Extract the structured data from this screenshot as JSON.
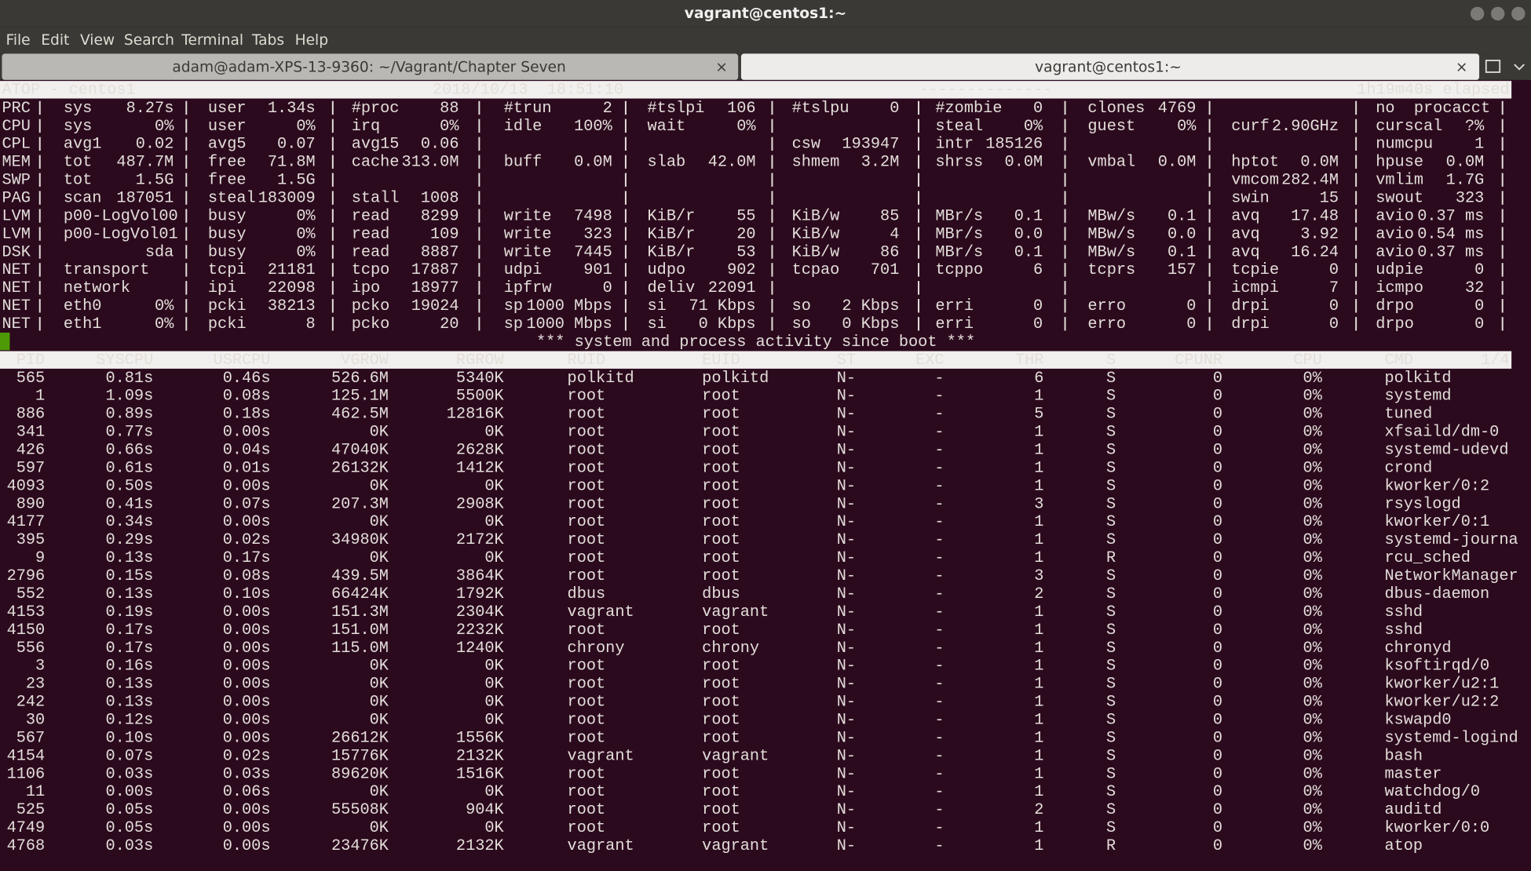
{
  "window": {
    "title": "vagrant@centos1:~"
  },
  "menu": [
    "File",
    "Edit",
    "View",
    "Search",
    "Terminal",
    "Tabs",
    "Help"
  ],
  "tabs": [
    "adam@adam-XPS-13-9360: ~/Vagrant/Chapter Seven",
    "vagrant@centos1:~"
  ],
  "atop": {
    "header": {
      "host": "ATOP - centos1",
      "datetime": "2018/10/13  18:51:10",
      "dashes": "--------------",
      "elapsed": "1h19m40s elapsed"
    },
    "system": [
      {
        "label": "PRC",
        "cells": [
          [
            "sys",
            "8.27s"
          ],
          [
            "user",
            "1.34s"
          ],
          [
            "#proc",
            "88"
          ],
          [
            "#trun",
            "2"
          ],
          [
            "#tslpi",
            "106"
          ],
          [
            "#tslpu",
            "0"
          ],
          [
            "#zombie",
            "0"
          ],
          [
            "clones",
            "4769"
          ],
          null,
          [
            "no  procacct",
            null
          ]
        ]
      },
      {
        "label": "CPU",
        "cells": [
          [
            "sys",
            "0%"
          ],
          [
            "user",
            "0%"
          ],
          [
            "irq",
            "0%"
          ],
          [
            "idle",
            "100%"
          ],
          [
            "wait",
            "0%"
          ],
          null,
          [
            "steal",
            "0%"
          ],
          [
            "guest",
            "0%"
          ],
          [
            "curf",
            "2.90GHz"
          ],
          [
            "curscal",
            "?%"
          ]
        ]
      },
      {
        "label": "CPL",
        "cells": [
          [
            "avg1",
            "0.02"
          ],
          [
            "avg5",
            "0.07"
          ],
          [
            "avg15",
            "0.06"
          ],
          null,
          null,
          [
            "csw",
            "193947"
          ],
          [
            "intr",
            "185126"
          ],
          null,
          null,
          [
            "numcpu",
            "1"
          ]
        ]
      },
      {
        "label": "MEM",
        "cells": [
          [
            "tot",
            "487.7M"
          ],
          [
            "free",
            "71.8M"
          ],
          [
            "cache",
            "313.0M"
          ],
          [
            "buff",
            "0.0M"
          ],
          [
            "slab",
            "42.0M"
          ],
          [
            "shmem",
            "3.2M"
          ],
          [
            "shrss",
            "0.0M"
          ],
          [
            "vmbal",
            "0.0M"
          ],
          [
            "hptot",
            "0.0M"
          ],
          [
            "hpuse",
            "0.0M"
          ]
        ]
      },
      {
        "label": "SWP",
        "cells": [
          [
            "tot",
            "1.5G"
          ],
          [
            "free",
            "1.5G"
          ],
          null,
          null,
          null,
          null,
          null,
          null,
          [
            "vmcom",
            "282.4M"
          ],
          [
            "vmlim",
            "1.7G"
          ]
        ]
      },
      {
        "label": "PAG",
        "cells": [
          [
            "scan",
            "187051"
          ],
          [
            "steal",
            "183009"
          ],
          [
            "stall",
            "1008"
          ],
          null,
          null,
          null,
          null,
          null,
          [
            "swin",
            "15"
          ],
          [
            "swout",
            "323"
          ]
        ]
      },
      {
        "label": "LVM",
        "cells": [
          [
            "p00-LogVol00",
            null
          ],
          [
            "busy",
            "0%"
          ],
          [
            "read",
            "8299"
          ],
          [
            "write",
            "7498"
          ],
          [
            "KiB/r",
            "55"
          ],
          [
            "KiB/w",
            "85"
          ],
          [
            "MBr/s",
            "0.1"
          ],
          [
            "MBw/s",
            "0.1"
          ],
          [
            "avq",
            "17.48"
          ],
          [
            "avio",
            "0.37 ms"
          ]
        ]
      },
      {
        "label": "LVM",
        "cells": [
          [
            "p00-LogVol01",
            null
          ],
          [
            "busy",
            "0%"
          ],
          [
            "read",
            "109"
          ],
          [
            "write",
            "323"
          ],
          [
            "KiB/r",
            "20"
          ],
          [
            "KiB/w",
            "4"
          ],
          [
            "MBr/s",
            "0.0"
          ],
          [
            "MBw/s",
            "0.0"
          ],
          [
            "avq",
            "3.92"
          ],
          [
            "avio",
            "0.54 ms"
          ]
        ]
      },
      {
        "label": "DSK",
        "cells": [
          [
            null,
            "sda"
          ],
          [
            "busy",
            "0%"
          ],
          [
            "read",
            "8887"
          ],
          [
            "write",
            "7445"
          ],
          [
            "KiB/r",
            "53"
          ],
          [
            "KiB/w",
            "86"
          ],
          [
            "MBr/s",
            "0.1"
          ],
          [
            "MBw/s",
            "0.1"
          ],
          [
            "avq",
            "16.24"
          ],
          [
            "avio",
            "0.37 ms"
          ]
        ]
      },
      {
        "label": "NET",
        "cells": [
          [
            "transport",
            null
          ],
          [
            "tcpi",
            "21181"
          ],
          [
            "tcpo",
            "17887"
          ],
          [
            "udpi",
            "901"
          ],
          [
            "udpo",
            "902"
          ],
          [
            "tcpao",
            "701"
          ],
          [
            "tcppo",
            "6"
          ],
          [
            "tcprs",
            "157"
          ],
          [
            "tcpie",
            "0"
          ],
          [
            "udpie",
            "0"
          ]
        ]
      },
      {
        "label": "NET",
        "cells": [
          [
            "network",
            null
          ],
          [
            "ipi",
            "22098"
          ],
          [
            "ipo",
            "18977"
          ],
          [
            "ipfrw",
            "0"
          ],
          [
            "deliv",
            "22091"
          ],
          null,
          null,
          null,
          [
            "icmpi",
            "7"
          ],
          [
            "icmpo",
            "32"
          ]
        ]
      },
      {
        "label": "NET",
        "cells": [
          [
            "eth0",
            "0%"
          ],
          [
            "pcki",
            "38213"
          ],
          [
            "pcko",
            "19024"
          ],
          [
            "sp",
            "1000 Mbps"
          ],
          [
            "si",
            "71 Kbps"
          ],
          [
            "so",
            "2 Kbps"
          ],
          [
            "erri",
            "0"
          ],
          [
            "erro",
            "0"
          ],
          [
            "drpi",
            "0"
          ],
          [
            "drpo",
            "0"
          ]
        ]
      },
      {
        "label": "NET",
        "cells": [
          [
            "eth1",
            "0%"
          ],
          [
            "pcki",
            "8"
          ],
          [
            "pcko",
            "20"
          ],
          [
            "sp",
            "1000 Mbps"
          ],
          [
            "si",
            "0 Kbps"
          ],
          [
            "so",
            "0 Kbps"
          ],
          [
            "erri",
            "0"
          ],
          [
            "erro",
            "0"
          ],
          [
            "drpi",
            "0"
          ],
          [
            "drpo",
            "0"
          ]
        ]
      }
    ],
    "banner": "*** system and process activity since boot ***",
    "columns": [
      "PID",
      "SYSCPU",
      "USRCPU",
      "VGROW",
      "RGROW",
      "RUID",
      "EUID",
      "ST",
      "EXC",
      "THR",
      "S",
      "CPUNR",
      "CPU",
      "CMD"
    ],
    "page": "1/4",
    "processes": [
      [
        565,
        "0.81s",
        "0.46s",
        "526.6M",
        "5340K",
        "polkitd",
        "polkitd",
        "N-",
        "-",
        6,
        "S",
        0,
        "0%",
        "polkitd"
      ],
      [
        1,
        "1.09s",
        "0.08s",
        "125.1M",
        "5500K",
        "root",
        "root",
        "N-",
        "-",
        1,
        "S",
        0,
        "0%",
        "systemd"
      ],
      [
        886,
        "0.89s",
        "0.18s",
        "462.5M",
        "12816K",
        "root",
        "root",
        "N-",
        "-",
        5,
        "S",
        0,
        "0%",
        "tuned"
      ],
      [
        341,
        "0.77s",
        "0.00s",
        "0K",
        "0K",
        "root",
        "root",
        "N-",
        "-",
        1,
        "S",
        0,
        "0%",
        "xfsaild/dm-0"
      ],
      [
        426,
        "0.66s",
        "0.04s",
        "47040K",
        "2628K",
        "root",
        "root",
        "N-",
        "-",
        1,
        "S",
        0,
        "0%",
        "systemd-udevd"
      ],
      [
        597,
        "0.61s",
        "0.01s",
        "26132K",
        "1412K",
        "root",
        "root",
        "N-",
        "-",
        1,
        "S",
        0,
        "0%",
        "crond"
      ],
      [
        4093,
        "0.50s",
        "0.00s",
        "0K",
        "0K",
        "root",
        "root",
        "N-",
        "-",
        1,
        "S",
        0,
        "0%",
        "kworker/0:2"
      ],
      [
        890,
        "0.41s",
        "0.07s",
        "207.3M",
        "2908K",
        "root",
        "root",
        "N-",
        "-",
        3,
        "S",
        0,
        "0%",
        "rsyslogd"
      ],
      [
        4177,
        "0.34s",
        "0.00s",
        "0K",
        "0K",
        "root",
        "root",
        "N-",
        "-",
        1,
        "S",
        0,
        "0%",
        "kworker/0:1"
      ],
      [
        395,
        "0.29s",
        "0.02s",
        "34980K",
        "2172K",
        "root",
        "root",
        "N-",
        "-",
        1,
        "S",
        0,
        "0%",
        "systemd-journa"
      ],
      [
        9,
        "0.13s",
        "0.17s",
        "0K",
        "0K",
        "root",
        "root",
        "N-",
        "-",
        1,
        "R",
        0,
        "0%",
        "rcu_sched"
      ],
      [
        2796,
        "0.15s",
        "0.08s",
        "439.5M",
        "3864K",
        "root",
        "root",
        "N-",
        "-",
        3,
        "S",
        0,
        "0%",
        "NetworkManager"
      ],
      [
        552,
        "0.13s",
        "0.10s",
        "66424K",
        "1792K",
        "dbus",
        "dbus",
        "N-",
        "-",
        2,
        "S",
        0,
        "0%",
        "dbus-daemon"
      ],
      [
        4153,
        "0.19s",
        "0.00s",
        "151.3M",
        "2304K",
        "vagrant",
        "vagrant",
        "N-",
        "-",
        1,
        "S",
        0,
        "0%",
        "sshd"
      ],
      [
        4150,
        "0.17s",
        "0.00s",
        "151.0M",
        "2232K",
        "root",
        "root",
        "N-",
        "-",
        1,
        "S",
        0,
        "0%",
        "sshd"
      ],
      [
        556,
        "0.17s",
        "0.00s",
        "115.0M",
        "1240K",
        "chrony",
        "chrony",
        "N-",
        "-",
        1,
        "S",
        0,
        "0%",
        "chronyd"
      ],
      [
        3,
        "0.16s",
        "0.00s",
        "0K",
        "0K",
        "root",
        "root",
        "N-",
        "-",
        1,
        "S",
        0,
        "0%",
        "ksoftirqd/0"
      ],
      [
        23,
        "0.13s",
        "0.00s",
        "0K",
        "0K",
        "root",
        "root",
        "N-",
        "-",
        1,
        "S",
        0,
        "0%",
        "kworker/u2:1"
      ],
      [
        242,
        "0.13s",
        "0.00s",
        "0K",
        "0K",
        "root",
        "root",
        "N-",
        "-",
        1,
        "S",
        0,
        "0%",
        "kworker/u2:2"
      ],
      [
        30,
        "0.12s",
        "0.00s",
        "0K",
        "0K",
        "root",
        "root",
        "N-",
        "-",
        1,
        "S",
        0,
        "0%",
        "kswapd0"
      ],
      [
        567,
        "0.10s",
        "0.00s",
        "26612K",
        "1556K",
        "root",
        "root",
        "N-",
        "-",
        1,
        "S",
        0,
        "0%",
        "systemd-logind"
      ],
      [
        4154,
        "0.07s",
        "0.02s",
        "15776K",
        "2132K",
        "vagrant",
        "vagrant",
        "N-",
        "-",
        1,
        "S",
        0,
        "0%",
        "bash"
      ],
      [
        1106,
        "0.03s",
        "0.03s",
        "89620K",
        "1516K",
        "root",
        "root",
        "N-",
        "-",
        1,
        "S",
        0,
        "0%",
        "master"
      ],
      [
        11,
        "0.00s",
        "0.06s",
        "0K",
        "0K",
        "root",
        "root",
        "N-",
        "-",
        1,
        "S",
        0,
        "0%",
        "watchdog/0"
      ],
      [
        525,
        "0.05s",
        "0.00s",
        "55508K",
        "904K",
        "root",
        "root",
        "N-",
        "-",
        2,
        "S",
        0,
        "0%",
        "auditd"
      ],
      [
        4749,
        "0.05s",
        "0.00s",
        "0K",
        "0K",
        "root",
        "root",
        "N-",
        "-",
        1,
        "S",
        0,
        "0%",
        "kworker/0:0"
      ],
      [
        4768,
        "0.03s",
        "0.00s",
        "23476K",
        "2132K",
        "vagrant",
        "vagrant",
        "N-",
        "-",
        1,
        "R",
        0,
        "0%",
        "atop"
      ]
    ]
  }
}
